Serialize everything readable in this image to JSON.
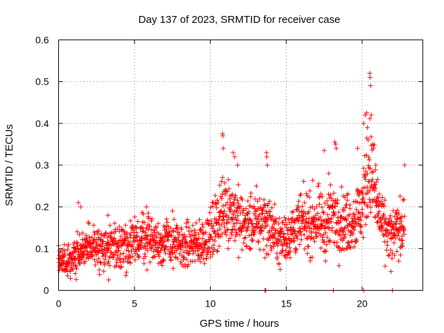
{
  "chart_data": {
    "type": "scatter",
    "title": "Day 137 of 2023, SRMTID for receiver case",
    "xlabel": "GPS time / hours",
    "ylabel": "SRMTID / TECUs",
    "xlim": [
      0,
      24
    ],
    "ylim": [
      0,
      0.6
    ],
    "xticks": [
      0,
      5,
      10,
      15,
      20
    ],
    "yticks": [
      0,
      0.1,
      0.2,
      0.3,
      0.4,
      0.5,
      0.6
    ],
    "xtick_labels": [
      "0",
      "5",
      "10",
      "15",
      "20"
    ],
    "ytick_labels": [
      "0",
      "0.1",
      "0.2",
      "0.3",
      "0.4",
      "0.5",
      "0.6"
    ],
    "grid": true,
    "marker": "+",
    "color": "#ff0000",
    "series": [
      {
        "name": "SRMTID",
        "profile": [
          [
            0.0,
            0.075
          ],
          [
            0.5,
            0.065
          ],
          [
            1.0,
            0.08
          ],
          [
            1.5,
            0.1
          ],
          [
            2.0,
            0.1
          ],
          [
            3.0,
            0.105
          ],
          [
            4.0,
            0.11
          ],
          [
            5.0,
            0.11
          ],
          [
            5.5,
            0.13
          ],
          [
            6.0,
            0.13
          ],
          [
            6.5,
            0.11
          ],
          [
            7.0,
            0.12
          ],
          [
            8.0,
            0.105
          ],
          [
            9.0,
            0.11
          ],
          [
            10.0,
            0.13
          ],
          [
            10.5,
            0.17
          ],
          [
            11.0,
            0.2
          ],
          [
            11.5,
            0.19
          ],
          [
            12.0,
            0.16
          ],
          [
            13.0,
            0.16
          ],
          [
            13.5,
            0.17
          ],
          [
            14.0,
            0.15
          ],
          [
            14.5,
            0.12
          ],
          [
            15.0,
            0.13
          ],
          [
            16.0,
            0.16
          ],
          [
            16.5,
            0.16
          ],
          [
            17.0,
            0.17
          ],
          [
            17.5,
            0.15
          ],
          [
            18.0,
            0.18
          ],
          [
            19.0,
            0.16
          ],
          [
            19.5,
            0.17
          ],
          [
            20.0,
            0.2
          ],
          [
            20.3,
            0.26
          ],
          [
            20.5,
            0.3
          ],
          [
            20.8,
            0.24
          ],
          [
            21.0,
            0.2
          ],
          [
            21.5,
            0.14
          ],
          [
            22.0,
            0.13
          ],
          [
            22.5,
            0.15
          ],
          [
            22.8,
            0.17
          ]
        ],
        "highlights": [
          [
            1.3,
            0.21
          ],
          [
            1.45,
            0.2
          ],
          [
            3.25,
            0.18
          ],
          [
            5.9,
            0.185
          ],
          [
            7.5,
            0.19
          ],
          [
            10.8,
            0.375
          ],
          [
            10.82,
            0.37
          ],
          [
            10.85,
            0.34
          ],
          [
            11.5,
            0.33
          ],
          [
            11.6,
            0.32
          ],
          [
            11.8,
            0.3
          ],
          [
            13.7,
            0.33
          ],
          [
            13.72,
            0.32
          ],
          [
            13.75,
            0.3
          ],
          [
            17.5,
            0.335
          ],
          [
            17.8,
            0.28
          ],
          [
            18.2,
            0.355
          ],
          [
            18.25,
            0.35
          ],
          [
            18.3,
            0.34
          ],
          [
            19.7,
            0.34
          ],
          [
            20.1,
            0.4
          ],
          [
            20.2,
            0.42
          ],
          [
            20.3,
            0.425
          ],
          [
            20.35,
            0.39
          ],
          [
            20.4,
            0.36
          ],
          [
            20.5,
            0.52
          ],
          [
            20.52,
            0.51
          ],
          [
            20.55,
            0.49
          ],
          [
            20.6,
            0.42
          ],
          [
            20.7,
            0.35
          ],
          [
            20.9,
            0.3
          ],
          [
            22.8,
            0.3
          ],
          [
            3.3,
            0.025
          ],
          [
            0.6,
            0.035
          ],
          [
            1.1,
            0.04
          ],
          [
            14.6,
            0.05
          ],
          [
            21.9,
            0.045
          ],
          [
            13.6,
            0.0
          ],
          [
            13.65,
            0.0
          ],
          [
            18.1,
            0.0
          ],
          [
            20.1,
            0.0
          ],
          [
            22.0,
            0.0
          ]
        ]
      }
    ]
  }
}
